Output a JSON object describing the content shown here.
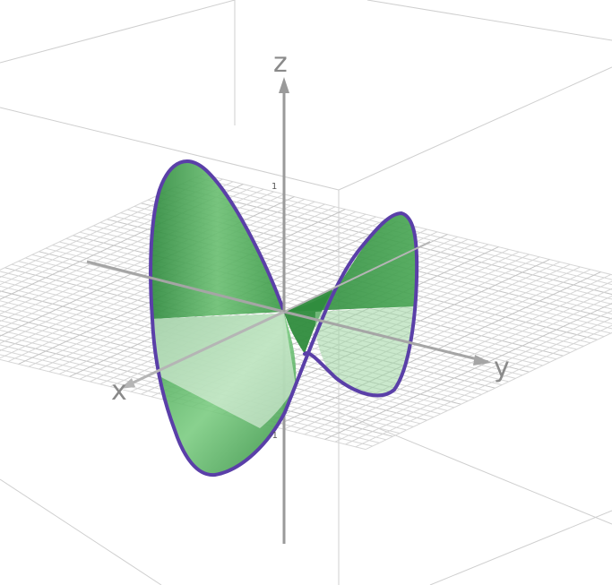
{
  "axes": {
    "x_label": "x",
    "y_label": "y",
    "z_label": "z",
    "z_tick_pos": "1",
    "z_tick_neg": "-1"
  },
  "colors": {
    "surface": "#3f9b4b",
    "boundary": "#5a3fa8",
    "axis": "#9a9a9a",
    "grid": "#d6d6d6",
    "box": "#c8c8c8"
  }
}
